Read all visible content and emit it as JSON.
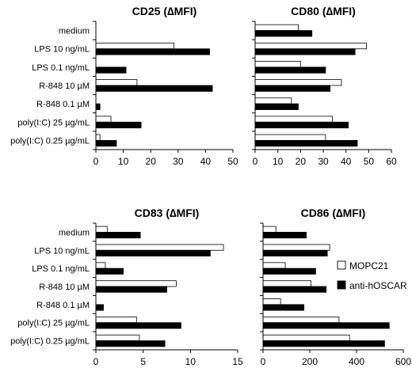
{
  "chart_data": [
    {
      "type": "bar",
      "title": "CD25 (∆MFI)",
      "categories": [
        "medium",
        "LPS 10 ng/mL",
        "LPS 0.1 ng/mL",
        "R-848 10 µM",
        "R-848 0.1 µM",
        "poly(I:C) 25 µg/mL",
        "poly(I:C) 0.25 µg/mL"
      ],
      "series": [
        {
          "name": "MOPC21",
          "values": [
            0,
            28.5,
            0,
            15,
            0,
            5.5,
            1.5
          ]
        },
        {
          "name": "anti-hOSCAR",
          "values": [
            0,
            41.5,
            11,
            42.5,
            1.5,
            16.5,
            7.5
          ]
        }
      ],
      "xlim": [
        0,
        50
      ],
      "xticks": [
        0,
        10,
        20,
        30,
        40,
        50
      ],
      "grid": false
    },
    {
      "type": "bar",
      "title": "CD80 (∆MFI)",
      "categories": [
        "medium",
        "LPS 10 ng/mL",
        "LPS 0.1 ng/mL",
        "R-848 10 µM",
        "R-848 0.1 µM",
        "poly(I:C) 25 µg/mL",
        "poly(I:C) 0.25 µg/mL"
      ],
      "series": [
        {
          "name": "MOPC21",
          "values": [
            19,
            49,
            20,
            38,
            16,
            34,
            31
          ]
        },
        {
          "name": "anti-hOSCAR",
          "values": [
            25,
            44,
            31,
            33,
            19,
            41,
            45
          ]
        }
      ],
      "xlim": [
        0,
        60
      ],
      "xticks": [
        0,
        10,
        20,
        30,
        40,
        50,
        60
      ],
      "grid": false
    },
    {
      "type": "bar",
      "title": "CD83 (∆MFI)",
      "categories": [
        "medium",
        "LPS 10 ng/mL",
        "LPS 0.1 ng/mL",
        "R-848 10 µM",
        "R-848 0.1 µM",
        "poly(I:C) 25 µg/mL",
        "poly(I:C) 0.25 µg/mL"
      ],
      "series": [
        {
          "name": "MOPC21",
          "values": [
            1.2,
            13.5,
            1.0,
            8.5,
            0,
            4.3,
            4.6
          ]
        },
        {
          "name": "anti-hOSCAR",
          "values": [
            4.7,
            12.1,
            2.9,
            7.5,
            0.8,
            9.0,
            7.3
          ]
        }
      ],
      "xlim": [
        0,
        15
      ],
      "xticks": [
        0,
        5,
        10,
        15
      ],
      "grid": false
    },
    {
      "type": "bar",
      "title": "CD86 (∆MFI)",
      "categories": [
        "medium",
        "LPS 10 ng/mL",
        "LPS 0.1 ng/mL",
        "R-848 10 µM",
        "R-848 0.1 µM",
        "poly(I:C) 25 µg/mL",
        "poly(I:C) 0.25 µg/mL"
      ],
      "series": [
        {
          "name": "MOPC21",
          "values": [
            55,
            285,
            95,
            205,
            75,
            325,
            370
          ]
        },
        {
          "name": "anti-hOSCAR",
          "values": [
            185,
            275,
            225,
            270,
            175,
            540,
            520
          ]
        }
      ],
      "xlim": [
        0,
        600
      ],
      "xticks": [
        0,
        200,
        400,
        600
      ],
      "grid": false,
      "legend_entries": [
        "MOPC21",
        "anti-hOSCAR"
      ],
      "legend_position": "right"
    }
  ],
  "colors": {
    "MOPC21": "#ffffff",
    "anti-hOSCAR": "#000000",
    "axis": "#000000"
  }
}
